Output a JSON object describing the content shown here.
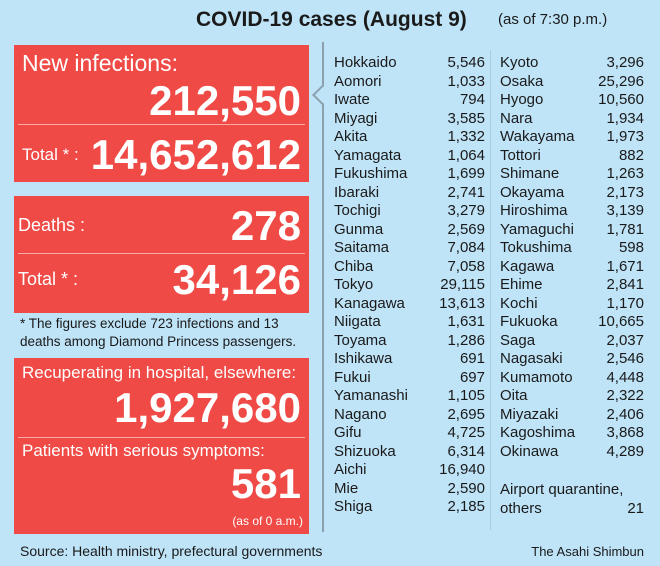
{
  "header": {
    "title": "COVID-19 cases (August 9)",
    "as_of": "(as of 7:30 p.m.)"
  },
  "colors": {
    "background": "#bfe3f7",
    "panel": "#ef4a45"
  },
  "infections": {
    "new_label": "New infections:",
    "new_value": "212,550",
    "total_label": "Total * :",
    "total_value": "14,652,612"
  },
  "deaths": {
    "label": "Deaths :",
    "value": "278",
    "total_label": "Total * :",
    "total_value": "34,126"
  },
  "footnote": {
    "line1": "* The figures exclude 723 infections and 13",
    "line2": "deaths among Diamond Princess passengers."
  },
  "recuperating": {
    "label": "Recuperating in hospital, elsewhere:",
    "value": "1,927,680",
    "serious_label": "Patients with serious symptoms:",
    "serious_value": "581",
    "serious_note": "(as of 0 a.m.)"
  },
  "prefectures_left": [
    {
      "name": "Hokkaido",
      "value": "5,546"
    },
    {
      "name": "Aomori",
      "value": "1,033"
    },
    {
      "name": "Iwate",
      "value": "794"
    },
    {
      "name": "Miyagi",
      "value": "3,585"
    },
    {
      "name": "Akita",
      "value": "1,332"
    },
    {
      "name": "Yamagata",
      "value": "1,064"
    },
    {
      "name": "Fukushima",
      "value": "1,699"
    },
    {
      "name": "Ibaraki",
      "value": "2,741"
    },
    {
      "name": "Tochigi",
      "value": "3,279"
    },
    {
      "name": "Gunma",
      "value": "2,569"
    },
    {
      "name": "Saitama",
      "value": "7,084"
    },
    {
      "name": "Chiba",
      "value": "7,058"
    },
    {
      "name": "Tokyo",
      "value": "29,115"
    },
    {
      "name": "Kanagawa",
      "value": "13,613"
    },
    {
      "name": "Niigata",
      "value": "1,631"
    },
    {
      "name": "Toyama",
      "value": "1,286"
    },
    {
      "name": "Ishikawa",
      "value": "691"
    },
    {
      "name": "Fukui",
      "value": "697"
    },
    {
      "name": "Yamanashi",
      "value": "1,105"
    },
    {
      "name": "Nagano",
      "value": "2,695"
    },
    {
      "name": "Gifu",
      "value": "4,725"
    },
    {
      "name": "Shizuoka",
      "value": "6,314"
    },
    {
      "name": "Aichi",
      "value": "16,940"
    },
    {
      "name": "Mie",
      "value": "2,590"
    },
    {
      "name": "Shiga",
      "value": "2,185"
    }
  ],
  "prefectures_right": [
    {
      "name": "Kyoto",
      "value": "3,296"
    },
    {
      "name": "Osaka",
      "value": "25,296"
    },
    {
      "name": "Hyogo",
      "value": "10,560"
    },
    {
      "name": "Nara",
      "value": "1,934"
    },
    {
      "name": "Wakayama",
      "value": "1,973"
    },
    {
      "name": "Tottori",
      "value": "882"
    },
    {
      "name": "Shimane",
      "value": "1,263"
    },
    {
      "name": "Okayama",
      "value": "2,173"
    },
    {
      "name": "Hiroshima",
      "value": "3,139"
    },
    {
      "name": "Yamaguchi",
      "value": "1,781"
    },
    {
      "name": "Tokushima",
      "value": "598"
    },
    {
      "name": "Kagawa",
      "value": "1,671"
    },
    {
      "name": "Ehime",
      "value": "2,841"
    },
    {
      "name": "Kochi",
      "value": "1,170"
    },
    {
      "name": "Fukuoka",
      "value": "10,665"
    },
    {
      "name": "Saga",
      "value": "2,037"
    },
    {
      "name": "Nagasaki",
      "value": "2,546"
    },
    {
      "name": "Kumamoto",
      "value": "4,448"
    },
    {
      "name": "Oita",
      "value": "2,322"
    },
    {
      "name": "Miyazaki",
      "value": "2,406"
    },
    {
      "name": "Kagoshima",
      "value": "3,868"
    },
    {
      "name": "Okinawa",
      "value": "4,289"
    }
  ],
  "airport": {
    "line1": "Airport quarantine,",
    "line2": "others",
    "value": "21"
  },
  "footer": {
    "source": "Source: Health ministry, prefectural governments",
    "credit": "The Asahi Shimbun"
  }
}
